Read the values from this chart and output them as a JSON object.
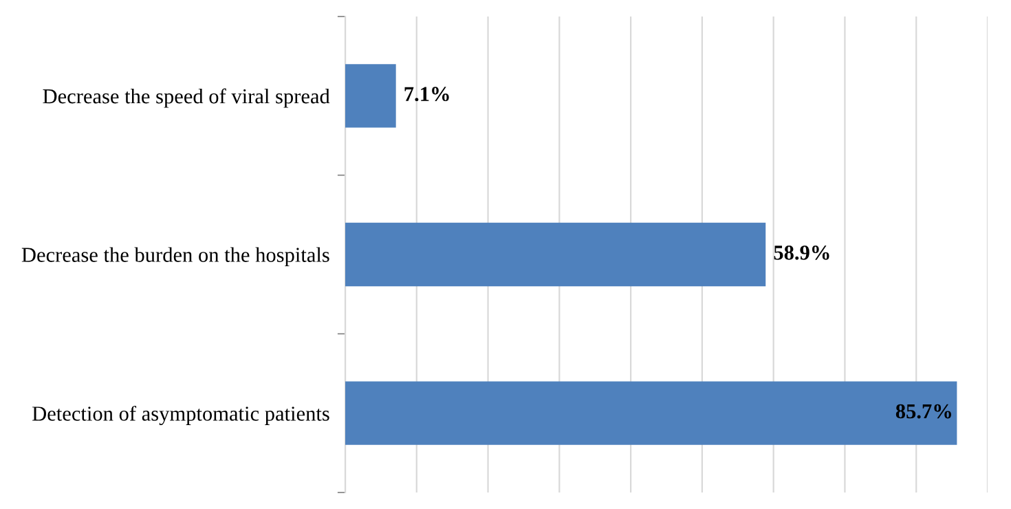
{
  "chart_data": {
    "type": "bar",
    "orientation": "horizontal",
    "categories": [
      "Decrease the speed of viral spread",
      "Decrease the burden on the hospitals",
      "Detection of asymptomatic patients"
    ],
    "values": [
      7.1,
      58.9,
      85.7
    ],
    "value_labels": [
      "7.1%",
      "58.9%",
      "85.7%"
    ],
    "color": "#4f81bd",
    "xlim": [
      0,
      90
    ],
    "xticks": [
      {
        "value": 0,
        "label": null
      },
      {
        "value": 10,
        "label": null
      },
      {
        "value": 20,
        "label": null
      },
      {
        "value": 30,
        "label": null
      },
      {
        "value": 40,
        "label": null
      },
      {
        "value": 50,
        "label": null
      },
      {
        "value": 60,
        "label": null
      },
      {
        "value": 70,
        "label": null
      },
      {
        "value": 80,
        "label": null
      },
      {
        "value": 90,
        "label": null
      }
    ],
    "grid": "x",
    "tick_labels": "y"
  }
}
